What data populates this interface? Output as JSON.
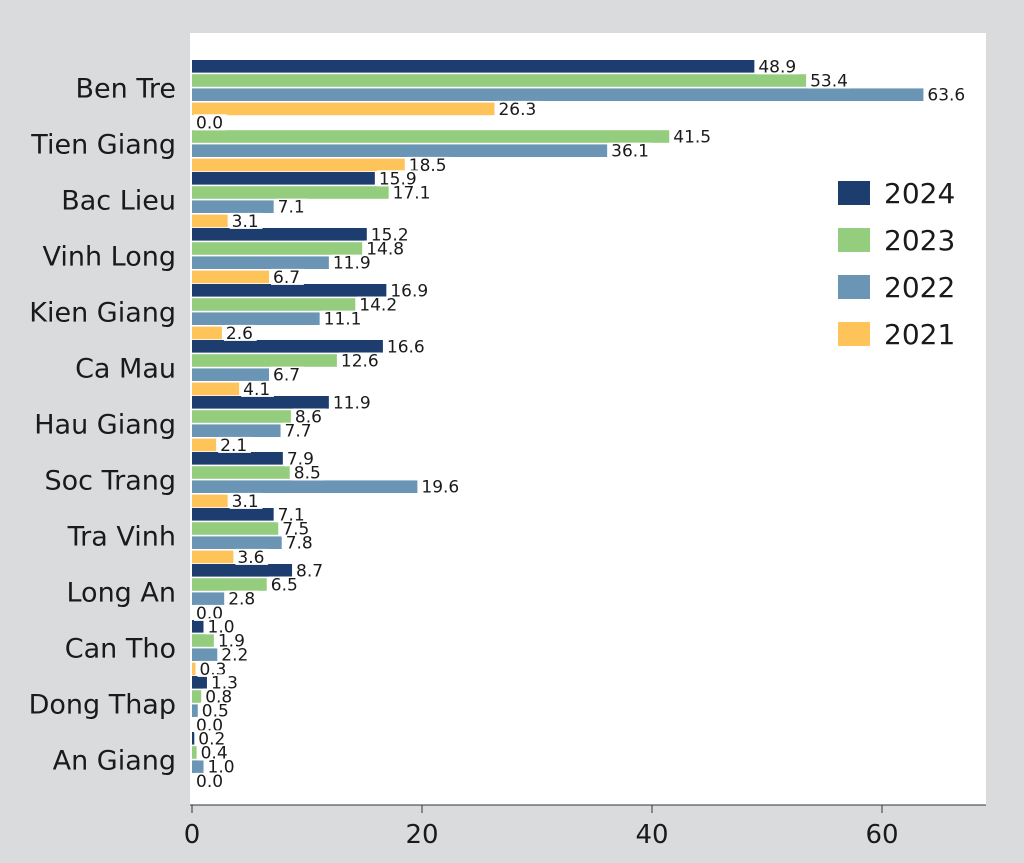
{
  "chart_data": {
    "type": "bar",
    "orientation": "horizontal",
    "title": "",
    "xlabel": "",
    "ylabel": "",
    "xlim": [
      0,
      69
    ],
    "xticks": [
      0,
      20,
      40,
      60
    ],
    "grid": false,
    "legend_position": "right",
    "categories": [
      "Ben Tre",
      "Tien Giang",
      "Bac Lieu",
      "Vinh Long",
      "Kien Giang",
      "Ca Mau",
      "Hau Giang",
      "Soc Trang",
      "Tra Vinh",
      "Long An",
      "Can Tho",
      "Dong Thap",
      "An Giang"
    ],
    "series": [
      {
        "name": "2024",
        "color": "#1c3d6e",
        "values": [
          48.9,
          0.0,
          15.9,
          15.2,
          16.9,
          16.6,
          11.9,
          7.9,
          7.1,
          8.7,
          1.0,
          1.3,
          0.2
        ]
      },
      {
        "name": "2023",
        "color": "#95cd7e",
        "values": [
          53.4,
          41.5,
          17.1,
          14.8,
          14.2,
          12.6,
          8.6,
          8.5,
          7.5,
          6.5,
          1.9,
          0.8,
          0.4
        ]
      },
      {
        "name": "2022",
        "color": "#6a95b5",
        "values": [
          63.6,
          36.1,
          7.1,
          11.9,
          11.1,
          6.7,
          7.7,
          19.6,
          7.8,
          2.8,
          2.2,
          0.5,
          1.0
        ]
      },
      {
        "name": "2021",
        "color": "#fec45a",
        "values": [
          26.3,
          18.5,
          3.1,
          6.7,
          2.6,
          4.1,
          2.1,
          3.1,
          3.6,
          0.0,
          0.3,
          0.0,
          0.0
        ]
      }
    ]
  }
}
